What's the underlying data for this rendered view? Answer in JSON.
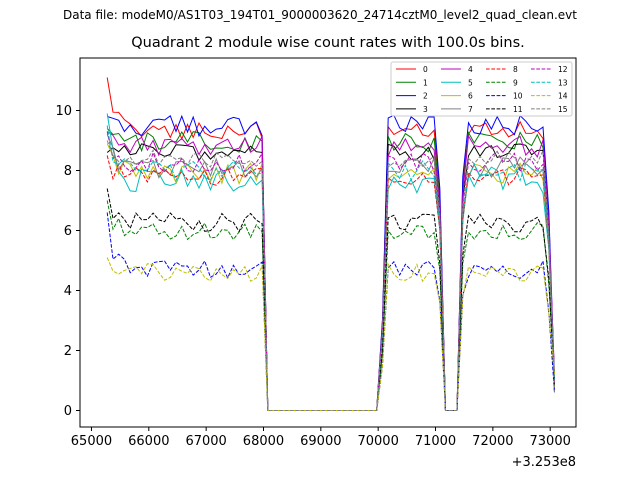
{
  "figure": {
    "suptitle": "Data file: modeM0/AS1T03_194T01_9000003620_24714cztM0_level2_quad_clean.evt"
  },
  "chart_data": {
    "type": "line",
    "title": "Quadrant 2 module wise count rates with 100.0s bins.",
    "xlabel": "",
    "ylabel": "",
    "x_offset_label": "+3.253e8",
    "xlim": [
      64800,
      73450
    ],
    "ylim": [
      -0.55,
      11.75
    ],
    "x_ticks": [
      65000,
      66000,
      67000,
      68000,
      69000,
      70000,
      71000,
      72000,
      73000
    ],
    "x_tick_labels": [
      "65000",
      "66000",
      "67000",
      "68000",
      "69000",
      "70000",
      "71000",
      "72000",
      "73000"
    ],
    "y_ticks": [
      0,
      2,
      4,
      6,
      8,
      10
    ],
    "y_tick_labels": [
      "0",
      "2",
      "4",
      "6",
      "8",
      "10"
    ],
    "legend_position": "top-right",
    "segments": [
      {
        "start": 65275,
        "end": 67975
      },
      {
        "start": 70075,
        "end": 71075
      },
      {
        "start": 71475,
        "end": 73075
      }
    ],
    "gap_points": [
      68075,
      69000,
      69975,
      71175,
      71275,
      71375
    ],
    "series": [
      {
        "name": "0",
        "color": "#ff0000",
        "dash": "solid",
        "level": 9.35,
        "start": 11.1,
        "amp": 0.3
      },
      {
        "name": "1",
        "color": "#008000",
        "dash": "solid",
        "level": 8.95,
        "start": 9.4,
        "amp": 0.35
      },
      {
        "name": "2",
        "color": "#0000ff",
        "dash": "solid",
        "level": 9.5,
        "start": 9.8,
        "amp": 0.35
      },
      {
        "name": "3",
        "color": "#000000",
        "dash": "solid",
        "level": 8.6,
        "start": 8.6,
        "amp": 0.3
      },
      {
        "name": "4",
        "color": "#bf00bf",
        "dash": "solid",
        "level": 8.8,
        "start": 9.3,
        "amp": 0.35
      },
      {
        "name": "5",
        "color": "#00bfbf",
        "dash": "solid",
        "level": 7.7,
        "start": 9.9,
        "amp": 0.45
      },
      {
        "name": "6",
        "color": "#bfbf00",
        "dash": "solid",
        "level": 7.9,
        "start": 8.9,
        "amp": 0.35
      },
      {
        "name": "7",
        "color": "#808080",
        "dash": "solid",
        "level": 8.1,
        "start": 9.2,
        "amp": 0.35
      },
      {
        "name": "8",
        "color": "#ff0000",
        "dash": "dashed",
        "level": 7.8,
        "start": 8.5,
        "amp": 0.3
      },
      {
        "name": "9",
        "color": "#008000",
        "dash": "dashed",
        "level": 6.0,
        "start": 7.0,
        "amp": 0.3
      },
      {
        "name": "10",
        "color": "#0000ff",
        "dash": "dashed",
        "level": 4.7,
        "start": 6.6,
        "amp": 0.3
      },
      {
        "name": "11",
        "color": "#000000",
        "dash": "dashed",
        "level": 6.3,
        "start": 7.4,
        "amp": 0.35
      },
      {
        "name": "12",
        "color": "#bf00bf",
        "dash": "dashed",
        "level": 8.3,
        "start": 9.3,
        "amp": 0.35
      },
      {
        "name": "13",
        "color": "#00bfbf",
        "dash": "dashed",
        "level": 8.0,
        "start": 9.5,
        "amp": 0.35
      },
      {
        "name": "14",
        "color": "#bfbf00",
        "dash": "dashed",
        "level": 4.6,
        "start": 5.1,
        "amp": 0.3
      },
      {
        "name": "15",
        "color": "#808080",
        "dash": "dashed",
        "level": 8.4,
        "start": 9.0,
        "amp": 0.3
      }
    ]
  }
}
